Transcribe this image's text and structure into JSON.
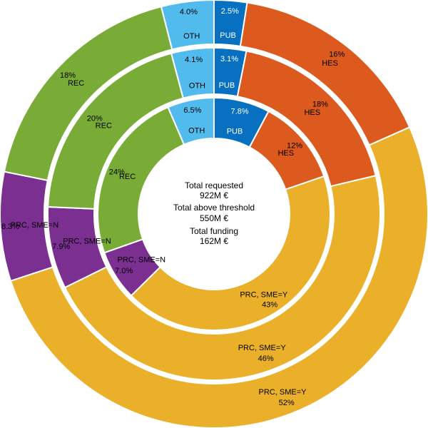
{
  "chart_data": {
    "type": "pie",
    "subtype": "nested-donut",
    "start_angle_deg": 90,
    "direction": "clockwise",
    "center_text": [
      "Total requested",
      "922M €",
      "Total above threshold",
      "550M €",
      "Total funding",
      "162M €"
    ],
    "rings": [
      {
        "name": "Total requested",
        "position": "outer",
        "slices": [
          {
            "category": "PUB",
            "value": 2.5,
            "label": "2.5%",
            "color": "#0770c0"
          },
          {
            "category": "HES",
            "value": 16,
            "label": "16%",
            "color": "#dc5a1e"
          },
          {
            "category": "PRC, SME=Y",
            "value": 52,
            "label": "52%",
            "color": "#eab02a"
          },
          {
            "category": "PRC, SME=N",
            "value": 8.3,
            "label": "8.3%",
            "color": "#7b2f91"
          },
          {
            "category": "REC",
            "value": 18,
            "label": "18%",
            "color": "#78ac36"
          },
          {
            "category": "OTH",
            "value": 4.0,
            "label": "4.0%",
            "color": "#52bbee"
          }
        ]
      },
      {
        "name": "Total above threshold",
        "position": "middle",
        "slices": [
          {
            "category": "PUB",
            "value": 3.1,
            "label": "3.1%",
            "color": "#0770c0"
          },
          {
            "category": "HES",
            "value": 18,
            "label": "18%",
            "color": "#dc5a1e"
          },
          {
            "category": "PRC, SME=Y",
            "value": 46,
            "label": "46%",
            "color": "#eab02a"
          },
          {
            "category": "PRC, SME=N",
            "value": 7.9,
            "label": "7.9%",
            "color": "#7b2f91"
          },
          {
            "category": "REC",
            "value": 20,
            "label": "20%",
            "color": "#78ac36"
          },
          {
            "category": "OTH",
            "value": 4.1,
            "label": "4.1%",
            "color": "#52bbee"
          }
        ]
      },
      {
        "name": "Total funding",
        "position": "inner",
        "slices": [
          {
            "category": "PUB",
            "value": 7.8,
            "label": "7.8%",
            "color": "#0770c0"
          },
          {
            "category": "HES",
            "value": 12,
            "label": "12%",
            "color": "#dc5a1e"
          },
          {
            "category": "PRC, SME=Y",
            "value": 43,
            "label": "43%",
            "color": "#eab02a"
          },
          {
            "category": "PRC, SME=N",
            "value": 7.0,
            "label": "7.0%",
            "color": "#7b2f91"
          },
          {
            "category": "REC",
            "value": 24,
            "label": "24%",
            "color": "#78ac36"
          },
          {
            "category": "OTH",
            "value": 6.5,
            "label": "6.5%",
            "color": "#52bbee"
          }
        ]
      }
    ]
  }
}
